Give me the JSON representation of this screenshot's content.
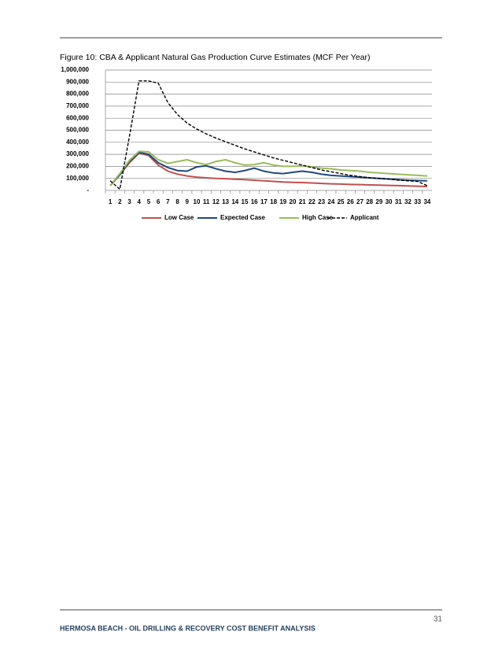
{
  "chart_data": {
    "type": "line",
    "title": "Figure 10: CBA & Applicant Natural Gas Production Curve Estimates (MCF Per Year)",
    "categories": [
      "1",
      "2",
      "3",
      "4",
      "5",
      "6",
      "7",
      "8",
      "9",
      "10",
      "11",
      "12",
      "13",
      "14",
      "15",
      "16",
      "17",
      "18",
      "19",
      "20",
      "21",
      "22",
      "23",
      "24",
      "25",
      "26",
      "27",
      "28",
      "29",
      "30",
      "31",
      "32",
      "33",
      "34"
    ],
    "series": [
      {
        "name": "Low Case",
        "color": "#c0504d",
        "dash": false,
        "values": [
          40000,
          130000,
          230000,
          310000,
          290000,
          210000,
          160000,
          135000,
          120000,
          110000,
          105000,
          100000,
          97000,
          93000,
          90000,
          85000,
          80000,
          75000,
          70000,
          67000,
          65000,
          62000,
          58000,
          55000,
          53000,
          50000,
          48000,
          46000,
          44000,
          42000,
          40000,
          38000,
          35000,
          33000
        ]
      },
      {
        "name": "Expected Case",
        "color": "#1f497d",
        "dash": false,
        "values": [
          40000,
          130000,
          240000,
          315000,
          300000,
          230000,
          190000,
          165000,
          160000,
          195000,
          205000,
          180000,
          160000,
          150000,
          165000,
          185000,
          160000,
          145000,
          140000,
          150000,
          160000,
          150000,
          135000,
          125000,
          120000,
          115000,
          110000,
          105000,
          100000,
          95000,
          90000,
          85000,
          82000,
          80000
        ]
      },
      {
        "name": "High Case",
        "color": "#9bbb59",
        "dash": false,
        "values": [
          40000,
          140000,
          250000,
          325000,
          320000,
          255000,
          225000,
          240000,
          255000,
          230000,
          215000,
          240000,
          255000,
          230000,
          210000,
          215000,
          230000,
          210000,
          200000,
          200000,
          205000,
          195000,
          185000,
          180000,
          170000,
          165000,
          160000,
          150000,
          145000,
          140000,
          135000,
          130000,
          125000,
          120000
        ]
      },
      {
        "name": "Applicant",
        "color": "#000000",
        "dash": true,
        "values": [
          80000,
          10000,
          450000,
          910000,
          910000,
          890000,
          730000,
          630000,
          560000,
          510000,
          470000,
          435000,
          405000,
          375000,
          345000,
          320000,
          295000,
          270000,
          250000,
          230000,
          210000,
          190000,
          170000,
          155000,
          140000,
          125000,
          115000,
          105000,
          100000,
          95000,
          85000,
          80000,
          75000,
          40000
        ]
      }
    ],
    "ylim": [
      0,
      1000000
    ],
    "yticks": [
      {
        "value": 0,
        "label": "-"
      },
      {
        "value": 100000,
        "label": "100,000"
      },
      {
        "value": 200000,
        "label": "200,000"
      },
      {
        "value": 300000,
        "label": "300,000"
      },
      {
        "value": 400000,
        "label": "400,000"
      },
      {
        "value": 500000,
        "label": "500,000"
      },
      {
        "value": 600000,
        "label": "600,000"
      },
      {
        "value": 700000,
        "label": "700,000"
      },
      {
        "value": 800000,
        "label": "800,000"
      },
      {
        "value": 900000,
        "label": "900,000"
      },
      {
        "value": 1000000,
        "label": "1,000,000"
      }
    ],
    "grid": true,
    "legend": "bottom"
  },
  "page_number": "31",
  "footer": "HERMOSA BEACH - OIL DRILLING & RECOVERY COST BENEFIT ANALYSIS"
}
